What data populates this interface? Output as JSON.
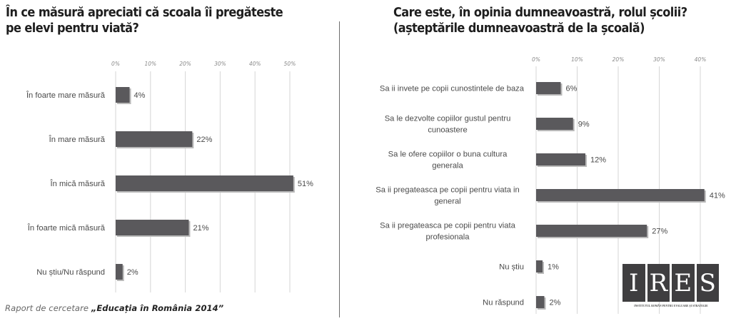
{
  "chart_data": [
    {
      "type": "bar",
      "orientation": "horizontal",
      "title": "În ce măsură apreciati că scoala îi pregăteste pe elevi pentru viată?",
      "title_lines": [
        "În ce măsură apreciati că scoala îi pregăteste",
        "pe elevi pentru viată?"
      ],
      "categories": [
        "În foarte mare măsură",
        "În mare măsură",
        "În mică măsură",
        "În foarte mică măsură",
        "Nu știu/Nu răspund"
      ],
      "category_lines": [
        [
          "În foarte mare măsură"
        ],
        [
          "În mare măsură"
        ],
        [
          "În mică măsură"
        ],
        [
          "În foarte mică măsură"
        ],
        [
          "Nu știu/Nu răspund"
        ]
      ],
      "values": [
        4,
        22,
        51,
        21,
        2
      ],
      "value_labels": [
        "4%",
        "22%",
        "51%",
        "21%",
        "2%"
      ],
      "xlim": [
        0,
        50
      ],
      "ticks": [
        0,
        10,
        20,
        30,
        40,
        50
      ],
      "tick_labels": [
        "0%",
        "10%",
        "20%",
        "30%",
        "40%",
        "50%"
      ],
      "axis_position": "top",
      "grid": true,
      "xlabel": "",
      "ylabel": "",
      "bar_color": "#5a595c"
    },
    {
      "type": "bar",
      "orientation": "horizontal",
      "title": "Care este, în opinia dumneavoastră, rolul școlii? (așteptările dumneavoastră de la școală)",
      "title_lines": [
        "Care este, în opinia dumneavoastră, rolul școlii?",
        "(așteptările dumneavoastră de la școală)"
      ],
      "categories": [
        "Sa ii invete pe copii cunostintele de baza",
        "Sa le dezvolte copiilor gustul pentru cunoastere",
        "Sa le ofere copiilor o buna cultura generala",
        "Sa ii pregateasca pe copii pentru viata in general",
        "Sa ii pregateasca pe copii pentru viata profesionala",
        "Nu știu",
        "Nu răspund"
      ],
      "category_lines": [
        [
          "Sa ii invete pe copii cunostintele de baza"
        ],
        [
          "Sa le dezvolte copiilor gustul pentru",
          "cunoastere"
        ],
        [
          "Sa le ofere copiilor o buna cultura",
          "generala"
        ],
        [
          "Sa ii pregateasca pe copii pentru viata in",
          "general"
        ],
        [
          "Sa ii pregateasca pe copii pentru viata",
          "profesionala"
        ],
        [
          "Nu știu"
        ],
        [
          "Nu răspund"
        ]
      ],
      "values": [
        6,
        9,
        12,
        41,
        27,
        1,
        2
      ],
      "value_labels": [
        "6%",
        "9%",
        "12%",
        "41%",
        "27%",
        "1%",
        "2%"
      ],
      "xlim": [
        0,
        40
      ],
      "ticks": [
        0,
        10,
        20,
        30,
        40
      ],
      "tick_labels": [
        "0%",
        "10%",
        "20%",
        "30%",
        "40%"
      ],
      "axis_position": "top",
      "grid": true,
      "xlabel": "",
      "ylabel": "",
      "bar_color": "#5a595c"
    }
  ],
  "footer": {
    "lead": "Raport de cercetare ",
    "title": "„Educația în România 2014”"
  },
  "logo": {
    "letters": [
      "I",
      "R",
      "E",
      "S"
    ],
    "subtitle": "INSTITUTUL ROMÂN PENTRU EVALUARE ȘI STRATEGIE",
    "color": "#3f3e40"
  }
}
